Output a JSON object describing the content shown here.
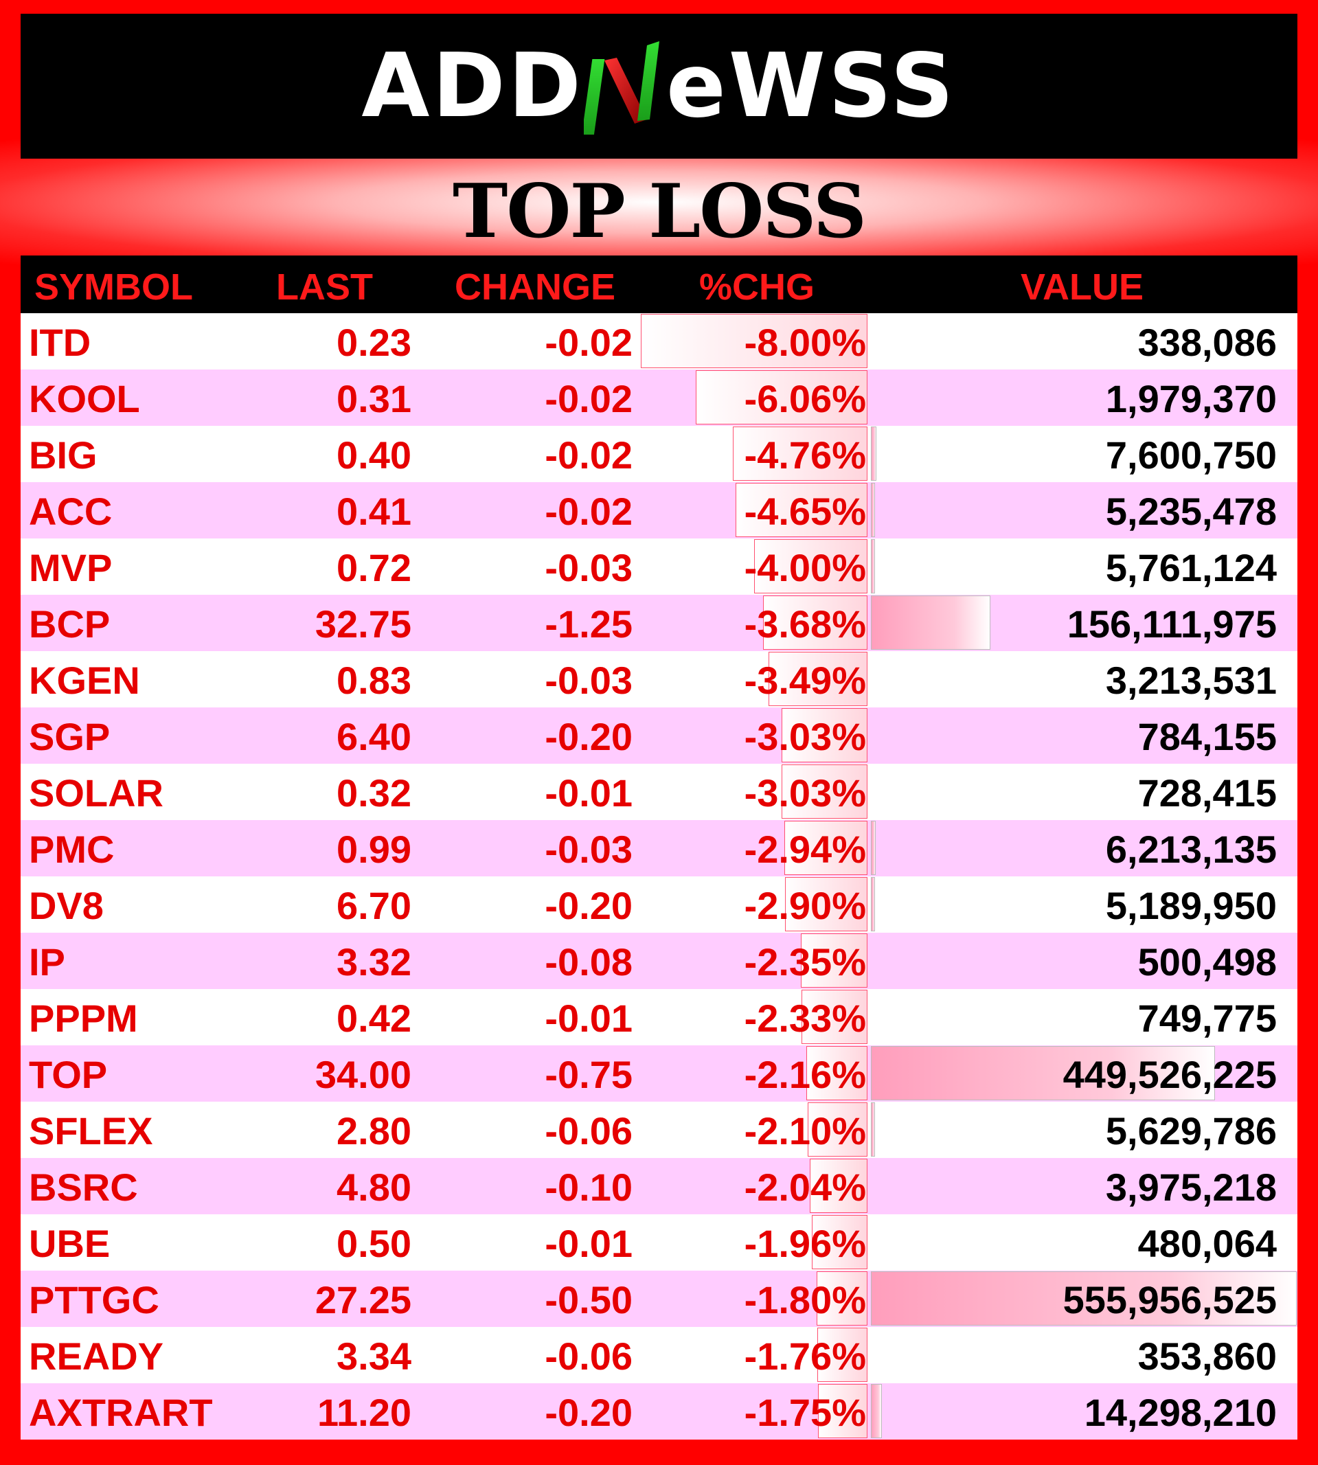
{
  "brand": {
    "left": "ADD",
    "right": "eWSS"
  },
  "title": "TOP LOSS",
  "columns": {
    "symbol": "SYMBOL",
    "last": "LAST",
    "change": "CHANGE",
    "pct": "%CHG",
    "value": "VALUE"
  },
  "colors": {
    "frame": "#ff0000",
    "header": "#000000",
    "accent": "#e60000",
    "row_alt": "#ffccff",
    "logo_green": "#22bb22"
  },
  "rows": [
    {
      "symbol": "ITD",
      "last": "0.23",
      "change": "-0.02",
      "pct": "-8.00%",
      "value": "338,086",
      "pct_level": 8.0,
      "value_level": 338086
    },
    {
      "symbol": "KOOL",
      "last": "0.31",
      "change": "-0.02",
      "pct": "-6.06%",
      "value": "1,979,370",
      "pct_level": 6.06,
      "value_level": 1979370
    },
    {
      "symbol": "BIG",
      "last": "0.40",
      "change": "-0.02",
      "pct": "-4.76%",
      "value": "7,600,750",
      "pct_level": 4.76,
      "value_level": 7600750
    },
    {
      "symbol": "ACC",
      "last": "0.41",
      "change": "-0.02",
      "pct": "-4.65%",
      "value": "5,235,478",
      "pct_level": 4.65,
      "value_level": 5235478
    },
    {
      "symbol": "MVP",
      "last": "0.72",
      "change": "-0.03",
      "pct": "-4.00%",
      "value": "5,761,124",
      "pct_level": 4.0,
      "value_level": 5761124
    },
    {
      "symbol": "BCP",
      "last": "32.75",
      "change": "-1.25",
      "pct": "-3.68%",
      "value": "156,111,975",
      "pct_level": 3.68,
      "value_level": 156111975
    },
    {
      "symbol": "KGEN",
      "last": "0.83",
      "change": "-0.03",
      "pct": "-3.49%",
      "value": "3,213,531",
      "pct_level": 3.49,
      "value_level": 3213531
    },
    {
      "symbol": "SGP",
      "last": "6.40",
      "change": "-0.20",
      "pct": "-3.03%",
      "value": "784,155",
      "pct_level": 3.03,
      "value_level": 784155
    },
    {
      "symbol": "SOLAR",
      "last": "0.32",
      "change": "-0.01",
      "pct": "-3.03%",
      "value": "728,415",
      "pct_level": 3.03,
      "value_level": 728415
    },
    {
      "symbol": "PMC",
      "last": "0.99",
      "change": "-0.03",
      "pct": "-2.94%",
      "value": "6,213,135",
      "pct_level": 2.94,
      "value_level": 6213135
    },
    {
      "symbol": "DV8",
      "last": "6.70",
      "change": "-0.20",
      "pct": "-2.90%",
      "value": "5,189,950",
      "pct_level": 2.9,
      "value_level": 5189950
    },
    {
      "symbol": "IP",
      "last": "3.32",
      "change": "-0.08",
      "pct": "-2.35%",
      "value": "500,498",
      "pct_level": 2.35,
      "value_level": 500498
    },
    {
      "symbol": "PPPM",
      "last": "0.42",
      "change": "-0.01",
      "pct": "-2.33%",
      "value": "749,775",
      "pct_level": 2.33,
      "value_level": 749775
    },
    {
      "symbol": "TOP",
      "last": "34.00",
      "change": "-0.75",
      "pct": "-2.16%",
      "value": "449,526,225",
      "pct_level": 2.16,
      "value_level": 449526225
    },
    {
      "symbol": "SFLEX",
      "last": "2.80",
      "change": "-0.06",
      "pct": "-2.10%",
      "value": "5,629,786",
      "pct_level": 2.1,
      "value_level": 5629786
    },
    {
      "symbol": "BSRC",
      "last": "4.80",
      "change": "-0.10",
      "pct": "-2.04%",
      "value": "3,975,218",
      "pct_level": 2.04,
      "value_level": 3975218
    },
    {
      "symbol": "UBE",
      "last": "0.50",
      "change": "-0.01",
      "pct": "-1.96%",
      "value": "480,064",
      "pct_level": 1.96,
      "value_level": 480064
    },
    {
      "symbol": "PTTGC",
      "last": "27.25",
      "change": "-0.50",
      "pct": "-1.80%",
      "value": "555,956,525",
      "pct_level": 1.8,
      "value_level": 555956525
    },
    {
      "symbol": "READY",
      "last": "3.34",
      "change": "-0.06",
      "pct": "-1.76%",
      "value": "353,860",
      "pct_level": 1.76,
      "value_level": 353860
    },
    {
      "symbol": "AXTRART",
      "last": "11.20",
      "change": "-0.20",
      "pct": "-1.75%",
      "value": "14,298,210",
      "pct_level": 1.75,
      "value_level": 14298210
    }
  ]
}
